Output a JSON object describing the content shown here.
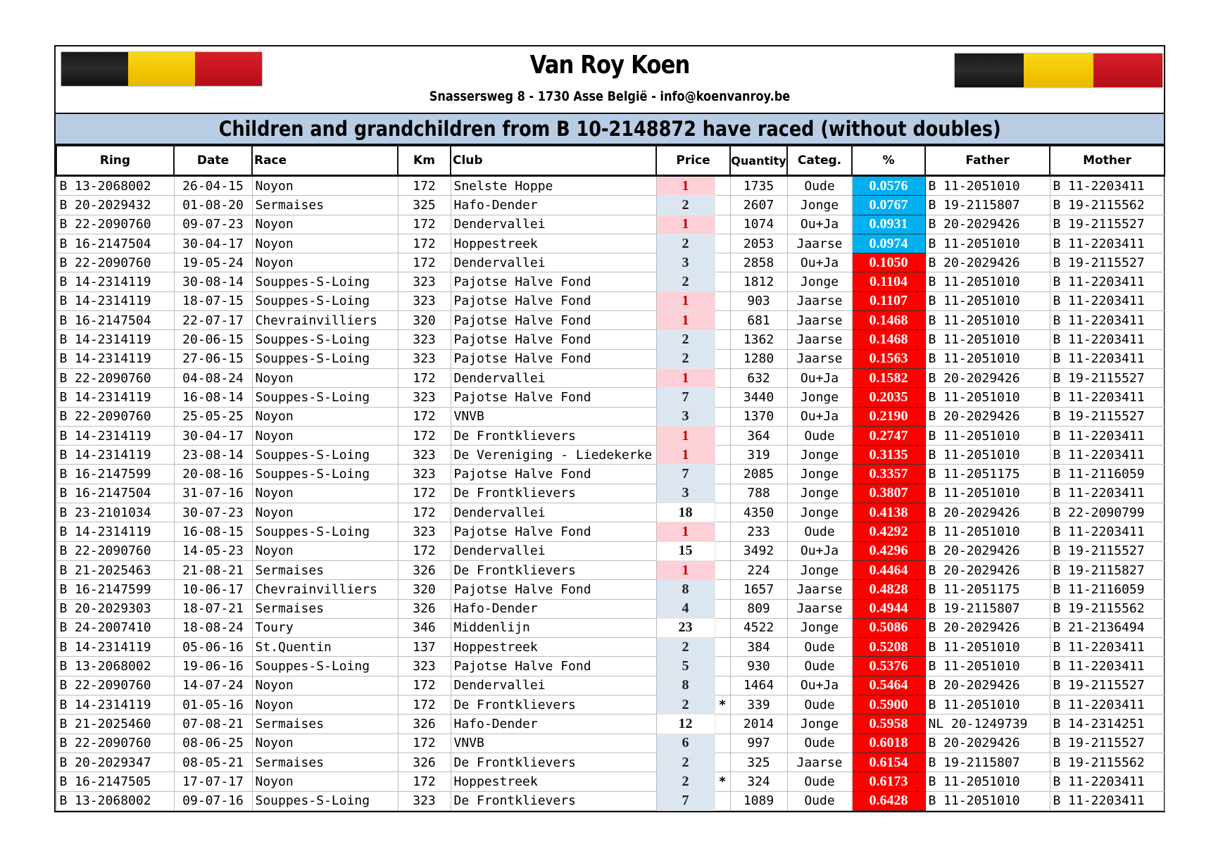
{
  "header": {
    "owner": "Van Roy Koen",
    "address": "Snassersweg 8 - 1730 Asse België - info@koenvanroy.be",
    "banner": "Children and grandchildren from B 10-2148872 have raced (without doubles)"
  },
  "colors": {
    "pct_low": "#00b0f0",
    "pct_high": "#ff0000",
    "price_one": "#fcd0d6",
    "price_other": "#dce6f1",
    "banner": "#b8cce4"
  },
  "columns": [
    "Ring",
    "Date",
    "Race",
    "Km",
    "Club",
    "Price",
    "",
    "Quantity",
    "Categ.",
    "%",
    "Father",
    "Mother"
  ],
  "rows": [
    [
      "B 13-2068002",
      "26-04-15",
      "Noyon",
      "172",
      "Snelste Hoppe",
      "1",
      "",
      "1735",
      "Oude",
      "0.0576",
      "B 11-2051010",
      "B 11-2203411"
    ],
    [
      "B 20-2029432",
      "01-08-20",
      "Sermaises",
      "325",
      "Hafo-Dender",
      "2",
      "",
      "2607",
      "Jonge",
      "0.0767",
      "B 19-2115807",
      "B 19-2115562"
    ],
    [
      "B 22-2090760",
      "09-07-23",
      "Noyon",
      "172",
      "Dendervallei",
      "1",
      "",
      "1074",
      "Ou+Ja",
      "0.0931",
      "B 20-2029426",
      "B 19-2115527"
    ],
    [
      "B 16-2147504",
      "30-04-17",
      "Noyon",
      "172",
      "Hoppestreek",
      "2",
      "",
      "2053",
      "Jaarse",
      "0.0974",
      "B 11-2051010",
      "B 11-2203411"
    ],
    [
      "B 22-2090760",
      "19-05-24",
      "Noyon",
      "172",
      "Dendervallei",
      "3",
      "",
      "2858",
      "Ou+Ja",
      "0.1050",
      "B 20-2029426",
      "B 19-2115527"
    ],
    [
      "B 14-2314119",
      "30-08-14",
      "Souppes-S-Loing",
      "323",
      "Pajotse Halve Fond",
      "2",
      "",
      "1812",
      "Jonge",
      "0.1104",
      "B 11-2051010",
      "B 11-2203411"
    ],
    [
      "B 14-2314119",
      "18-07-15",
      "Souppes-S-Loing",
      "323",
      "Pajotse Halve Fond",
      "1",
      "",
      "903",
      "Jaarse",
      "0.1107",
      "B 11-2051010",
      "B 11-2203411"
    ],
    [
      "B 16-2147504",
      "22-07-17",
      "Chevrainvilliers",
      "320",
      "Pajotse Halve Fond",
      "1",
      "",
      "681",
      "Jaarse",
      "0.1468",
      "B 11-2051010",
      "B 11-2203411"
    ],
    [
      "B 14-2314119",
      "20-06-15",
      "Souppes-S-Loing",
      "323",
      "Pajotse Halve Fond",
      "2",
      "",
      "1362",
      "Jaarse",
      "0.1468",
      "B 11-2051010",
      "B 11-2203411"
    ],
    [
      "B 14-2314119",
      "27-06-15",
      "Souppes-S-Loing",
      "323",
      "Pajotse Halve Fond",
      "2",
      "",
      "1280",
      "Jaarse",
      "0.1563",
      "B 11-2051010",
      "B 11-2203411"
    ],
    [
      "B 22-2090760",
      "04-08-24",
      "Noyon",
      "172",
      "Dendervallei",
      "1",
      "",
      "632",
      "Ou+Ja",
      "0.1582",
      "B 20-2029426",
      "B 19-2115527"
    ],
    [
      "B 14-2314119",
      "16-08-14",
      "Souppes-S-Loing",
      "323",
      "Pajotse Halve Fond",
      "7",
      "",
      "3440",
      "Jonge",
      "0.2035",
      "B 11-2051010",
      "B 11-2203411"
    ],
    [
      "B 22-2090760",
      "25-05-25",
      "Noyon",
      "172",
      "VNVB",
      "3",
      "",
      "1370",
      "Ou+Ja",
      "0.2190",
      "B 20-2029426",
      "B 19-2115527"
    ],
    [
      "B 14-2314119",
      "30-04-17",
      "Noyon",
      "172",
      "De Frontklievers",
      "1",
      "",
      "364",
      "Oude",
      "0.2747",
      "B 11-2051010",
      "B 11-2203411"
    ],
    [
      "B 14-2314119",
      "23-08-14",
      "Souppes-S-Loing",
      "323",
      "De Vereniging - Liedekerke",
      "1",
      "",
      "319",
      "Jonge",
      "0.3135",
      "B 11-2051010",
      "B 11-2203411"
    ],
    [
      "B 16-2147599",
      "20-08-16",
      "Souppes-S-Loing",
      "323",
      "Pajotse Halve Fond",
      "7",
      "",
      "2085",
      "Jonge",
      "0.3357",
      "B 11-2051175",
      "B 11-2116059"
    ],
    [
      "B 16-2147504",
      "31-07-16",
      "Noyon",
      "172",
      "De Frontklievers",
      "3",
      "",
      "788",
      "Jonge",
      "0.3807",
      "B 11-2051010",
      "B 11-2203411"
    ],
    [
      "B 23-2101034",
      "30-07-23",
      "Noyon",
      "172",
      "Dendervallei",
      "18",
      "",
      "4350",
      "Jonge",
      "0.4138",
      "B 20-2029426",
      "B 22-2090799"
    ],
    [
      "B 14-2314119",
      "16-08-15",
      "Souppes-S-Loing",
      "323",
      "Pajotse Halve Fond",
      "1",
      "",
      "233",
      "Oude",
      "0.4292",
      "B 11-2051010",
      "B 11-2203411"
    ],
    [
      "B 22-2090760",
      "14-05-23",
      "Noyon",
      "172",
      "Dendervallei",
      "15",
      "",
      "3492",
      "Ou+Ja",
      "0.4296",
      "B 20-2029426",
      "B 19-2115527"
    ],
    [
      "B 21-2025463",
      "21-08-21",
      "Sermaises",
      "326",
      "De Frontklievers",
      "1",
      "",
      "224",
      "Jonge",
      "0.4464",
      "B 20-2029426",
      "B 19-2115827"
    ],
    [
      "B 16-2147599",
      "10-06-17",
      "Chevrainvilliers",
      "320",
      "Pajotse Halve Fond",
      "8",
      "",
      "1657",
      "Jaarse",
      "0.4828",
      "B 11-2051175",
      "B 11-2116059"
    ],
    [
      "B 20-2029303",
      "18-07-21",
      "Sermaises",
      "326",
      "Hafo-Dender",
      "4",
      "",
      "809",
      "Jaarse",
      "0.4944",
      "B 19-2115807",
      "B 19-2115562"
    ],
    [
      "B 24-2007410",
      "18-08-24",
      "Toury",
      "346",
      "Middenlijn",
      "23",
      "",
      "4522",
      "Jonge",
      "0.5086",
      "B 20-2029426",
      "B 21-2136494"
    ],
    [
      "B 14-2314119",
      "05-06-16",
      "St.Quentin",
      "137",
      "Hoppestreek",
      "2",
      "",
      "384",
      "Oude",
      "0.5208",
      "B 11-2051010",
      "B 11-2203411"
    ],
    [
      "B 13-2068002",
      "19-06-16",
      "Souppes-S-Loing",
      "323",
      "Pajotse Halve Fond",
      "5",
      "",
      "930",
      "Oude",
      "0.5376",
      "B 11-2051010",
      "B 11-2203411"
    ],
    [
      "B 22-2090760",
      "14-07-24",
      "Noyon",
      "172",
      "Dendervallei",
      "8",
      "",
      "1464",
      "Ou+Ja",
      "0.5464",
      "B 20-2029426",
      "B 19-2115527"
    ],
    [
      "B 14-2314119",
      "01-05-16",
      "Noyon",
      "172",
      "De Frontklievers",
      "2",
      "*",
      "339",
      "Oude",
      "0.5900",
      "B 11-2051010",
      "B 11-2203411"
    ],
    [
      "B 21-2025460",
      "07-08-21",
      "Sermaises",
      "326",
      "Hafo-Dender",
      "12",
      "",
      "2014",
      "Jonge",
      "0.5958",
      "NL 20-1249739",
      "B 14-2314251"
    ],
    [
      "B 22-2090760",
      "08-06-25",
      "Noyon",
      "172",
      "VNVB",
      "6",
      "",
      "997",
      "Oude",
      "0.6018",
      "B 20-2029426",
      "B 19-2115527"
    ],
    [
      "B 20-2029347",
      "08-05-21",
      "Sermaises",
      "326",
      "De Frontklievers",
      "2",
      "",
      "325",
      "Jaarse",
      "0.6154",
      "B 19-2115807",
      "B 19-2115562"
    ],
    [
      "B 16-2147505",
      "17-07-17",
      "Noyon",
      "172",
      "Hoppestreek",
      "2",
      "*",
      "324",
      "Oude",
      "0.6173",
      "B 11-2051010",
      "B 11-2203411"
    ],
    [
      "B 13-2068002",
      "09-07-16",
      "Souppes-S-Loing",
      "323",
      "De Frontklievers",
      "7",
      "",
      "1089",
      "Oude",
      "0.6428",
      "B 11-2051010",
      "B 11-2203411"
    ]
  ]
}
